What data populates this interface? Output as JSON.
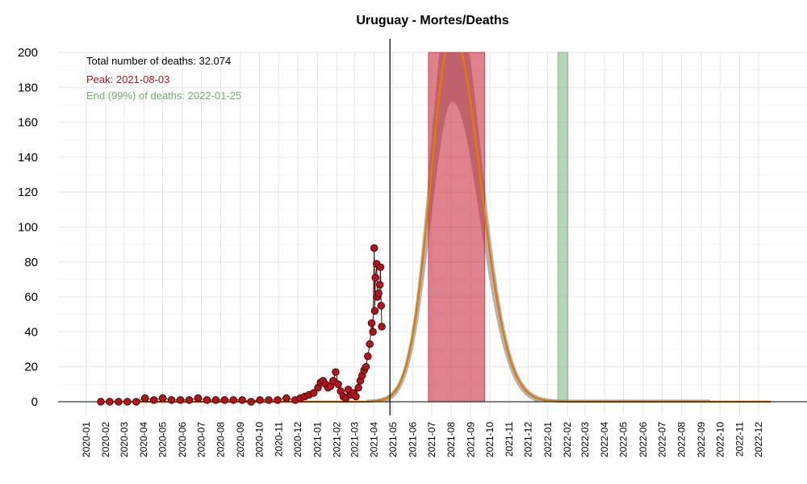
{
  "chart_data": {
    "type": "scatter",
    "title": "Uruguay - Mortes/Deaths",
    "xlabel": "",
    "ylabel": "",
    "x_range": [
      "2020-01-01",
      "2022-12-31"
    ],
    "ylim": [
      0,
      200
    ],
    "y_ticks": [
      0,
      20,
      40,
      60,
      80,
      100,
      120,
      140,
      160,
      180,
      200
    ],
    "x_tick_labels": [
      "2020-01",
      "2020-02",
      "2020-03",
      "2020-04",
      "2020-05",
      "2020-06",
      "2020-07",
      "2020-08",
      "2020-09",
      "2020-10",
      "2020-11",
      "2020-12",
      "2021-01",
      "2021-02",
      "2021-03",
      "2021-04",
      "2021-05",
      "2021-06",
      "2021-07",
      "2021-08",
      "2021-09",
      "2021-10",
      "2021-11",
      "2021-12",
      "2022-01",
      "2022-02",
      "2022-03",
      "2022-04",
      "2022-05",
      "2022-06",
      "2022-07",
      "2022-08",
      "2022-09",
      "2022-10",
      "2022-11",
      "2022-12"
    ],
    "grid": true,
    "annotations": {
      "total": "Total number of deaths: 32.074",
      "peak": "Peak: 2021-08-03",
      "end": "End (99%) of deaths: 2022-01-25"
    },
    "current_date": "2021-04-26",
    "peak_band": {
      "start": "2021-06-26",
      "end": "2021-09-23",
      "color": "#c8283a"
    },
    "end_band": {
      "start": "2022-01-17",
      "end": "2022-02-02",
      "color": "#6fae6f"
    },
    "model": {
      "peak_date": "2021-08-03",
      "peak_value": 212,
      "sd_days_before": 34,
      "sd_days_after": 44,
      "color": "#e07b00"
    },
    "observed_color": "#b3141c",
    "observed_points": [
      [
        "2020-01-24",
        0
      ],
      [
        "2020-02-07",
        0
      ],
      [
        "2020-02-21",
        0
      ],
      [
        "2020-03-06",
        0
      ],
      [
        "2020-03-20",
        0
      ],
      [
        "2020-04-03",
        2
      ],
      [
        "2020-04-17",
        1
      ],
      [
        "2020-05-01",
        2
      ],
      [
        "2020-05-15",
        1
      ],
      [
        "2020-05-29",
        1
      ],
      [
        "2020-06-12",
        1
      ],
      [
        "2020-06-26",
        2
      ],
      [
        "2020-07-10",
        1
      ],
      [
        "2020-07-24",
        1
      ],
      [
        "2020-08-07",
        1
      ],
      [
        "2020-08-21",
        1
      ],
      [
        "2020-09-04",
        1
      ],
      [
        "2020-09-18",
        0
      ],
      [
        "2020-10-02",
        1
      ],
      [
        "2020-10-16",
        1
      ],
      [
        "2020-10-30",
        1
      ],
      [
        "2020-11-13",
        2
      ],
      [
        "2020-11-27",
        1
      ],
      [
        "2020-12-05",
        2
      ],
      [
        "2020-12-12",
        3
      ],
      [
        "2020-12-19",
        4
      ],
      [
        "2020-12-26",
        5
      ],
      [
        "2021-01-02",
        8
      ],
      [
        "2021-01-06",
        11
      ],
      [
        "2021-01-10",
        12
      ],
      [
        "2021-01-14",
        10
      ],
      [
        "2021-01-18",
        8
      ],
      [
        "2021-01-22",
        9
      ],
      [
        "2021-01-26",
        12
      ],
      [
        "2021-01-30",
        17
      ],
      [
        "2021-02-03",
        10
      ],
      [
        "2021-02-07",
        6
      ],
      [
        "2021-02-11",
        3
      ],
      [
        "2021-02-15",
        2
      ],
      [
        "2021-02-19",
        7
      ],
      [
        "2021-02-23",
        4
      ],
      [
        "2021-02-27",
        5
      ],
      [
        "2021-03-03",
        3
      ],
      [
        "2021-03-07",
        8
      ],
      [
        "2021-03-10",
        12
      ],
      [
        "2021-03-13",
        15
      ],
      [
        "2021-03-16",
        18
      ],
      [
        "2021-03-19",
        20
      ],
      [
        "2021-03-22",
        26
      ],
      [
        "2021-03-25",
        33
      ],
      [
        "2021-03-28",
        45
      ],
      [
        "2021-03-30",
        40
      ],
      [
        "2021-04-01",
        88
      ],
      [
        "2021-04-02",
        52
      ],
      [
        "2021-04-03",
        71
      ],
      [
        "2021-04-05",
        79
      ],
      [
        "2021-04-06",
        60
      ],
      [
        "2021-04-08",
        62
      ],
      [
        "2021-04-10",
        67
      ],
      [
        "2021-04-11",
        77
      ],
      [
        "2021-04-12",
        55
      ],
      [
        "2021-04-13",
        43
      ]
    ]
  }
}
